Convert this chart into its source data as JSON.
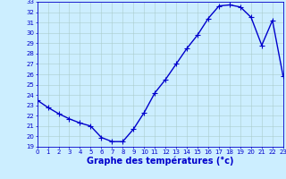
{
  "x": [
    0,
    1,
    2,
    3,
    4,
    5,
    6,
    7,
    8,
    9,
    10,
    11,
    12,
    13,
    14,
    15,
    16,
    17,
    18,
    19,
    20,
    21,
    22,
    23
  ],
  "y": [
    23.5,
    22.8,
    22.2,
    21.7,
    21.3,
    21.0,
    19.9,
    19.5,
    19.5,
    20.7,
    22.3,
    24.2,
    25.5,
    27.0,
    28.5,
    29.8,
    31.4,
    32.6,
    32.7,
    32.5,
    31.5,
    28.8,
    31.2,
    25.8
  ],
  "line_color": "#0000cc",
  "marker": "+",
  "markersize": 4,
  "linewidth": 1.0,
  "background_color": "#cceeff",
  "grid_color": "#aacccc",
  "xlabel": "Graphe des températures (°c)",
  "xlabel_fontsize": 7,
  "xlabel_color": "#0000cc",
  "xlabel_fontweight": "bold",
  "ylim": [
    19,
    33
  ],
  "yticks": [
    19,
    20,
    21,
    22,
    23,
    24,
    25,
    26,
    27,
    28,
    29,
    30,
    31,
    32,
    33
  ],
  "xticks": [
    0,
    1,
    2,
    3,
    4,
    5,
    6,
    7,
    8,
    9,
    10,
    11,
    12,
    13,
    14,
    15,
    16,
    17,
    18,
    19,
    20,
    21,
    22,
    23
  ],
  "tick_fontsize": 5,
  "tick_color": "#0000cc"
}
